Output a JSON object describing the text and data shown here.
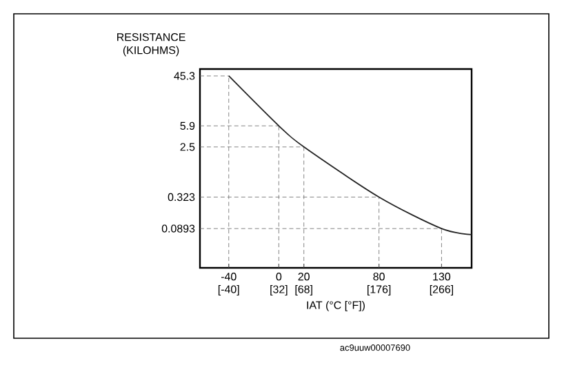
{
  "chart_data": {
    "type": "line",
    "xlabel": "IAT (°C [°F])",
    "ylabel": "RESISTANCE (KILOHMS)",
    "x": [
      -40,
      0,
      20,
      80,
      130,
      154
    ],
    "series": [
      {
        "color": "#222222",
        "values": [
          45.3,
          5.9,
          2.5,
          0.323,
          0.0893,
          0.07
        ]
      }
    ],
    "ref_lines": [
      {
        "axis": "x",
        "value": -40,
        "color": "#666666",
        "line_style": "dashed"
      },
      {
        "axis": "x",
        "value": 0,
        "color": "#666666",
        "line_style": "dashed"
      },
      {
        "axis": "x",
        "value": 20,
        "color": "#666666",
        "line_style": "dashed"
      },
      {
        "axis": "x",
        "value": 80,
        "color": "#666666",
        "line_style": "dashed"
      },
      {
        "axis": "x",
        "value": 130,
        "color": "#666666",
        "line_style": "dashed"
      },
      {
        "axis": "y",
        "value": 45.3,
        "color": "#666666",
        "line_style": "dashed"
      },
      {
        "axis": "y",
        "value": 5.9,
        "color": "#666666",
        "line_style": "dashed"
      },
      {
        "axis": "y",
        "value": 2.5,
        "color": "#666666",
        "line_style": "dashed"
      },
      {
        "axis": "y",
        "value": 0.323,
        "color": "#666666",
        "line_style": "dashed"
      },
      {
        "axis": "y",
        "value": 0.0893,
        "color": "#666666",
        "line_style": "dashed"
      }
    ],
    "log": "y",
    "marker": "none",
    "line_style": "solid",
    "xlim": [
      -63,
      154
    ],
    "ylim": [
      0.018,
      60
    ],
    "xticks": [
      -40,
      0,
      20,
      80,
      130
    ],
    "x2lim": [
      -81.4,
      309.2
    ],
    "x2ticks": [
      {
        "value": -40,
        "label": "[-40]"
      },
      {
        "value": 32,
        "label": "[32]"
      },
      {
        "value": 68,
        "label": "[68]"
      },
      {
        "value": 176,
        "label": "[176]"
      },
      {
        "value": 266,
        "label": "[266]"
      }
    ],
    "yticks": [
      45.3,
      5.9,
      2.5,
      0.323,
      0.0893
    ],
    "annotations": [
      "ac9uuw00007690"
    ]
  }
}
